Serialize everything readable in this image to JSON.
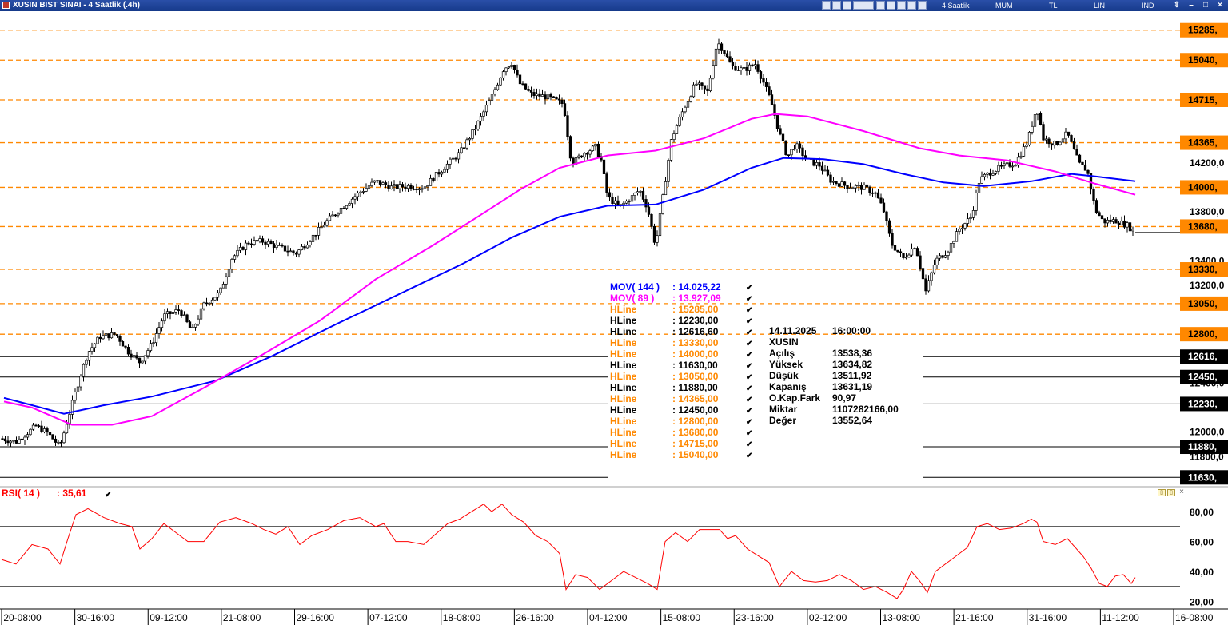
{
  "window": {
    "title": "XUSIN BIST SINAI - 4 Saatlik (.4h)",
    "menu": [
      "4 Saatlik",
      "MUM",
      "TL",
      "LIN",
      "IND"
    ]
  },
  "legend": {
    "mov144": {
      "label": "MOV( 144 )",
      "value": ": 14.025,22",
      "color": "#0000ff"
    },
    "mov89": {
      "label": "MOV( 89 )",
      "value": ": 13.927,09",
      "color": "#ff00ff"
    },
    "hlines": [
      {
        "label": "HLine",
        "value": ": 15285,00",
        "color": "#ff8800"
      },
      {
        "label": "HLine",
        "value": ": 12230,00",
        "color": "#000000"
      },
      {
        "label": "HLine",
        "value": ": 12616,60",
        "color": "#000000"
      },
      {
        "label": "HLine",
        "value": ": 13330,00",
        "color": "#ff8800"
      },
      {
        "label": "HLine",
        "value": ": 14000,00",
        "color": "#ff8800"
      },
      {
        "label": "HLine",
        "value": ": 11630,00",
        "color": "#000000"
      },
      {
        "label": "HLine",
        "value": ": 13050,00",
        "color": "#ff8800"
      },
      {
        "label": "HLine",
        "value": ": 11880,00",
        "color": "#000000"
      },
      {
        "label": "HLine",
        "value": ": 14365,00",
        "color": "#ff8800"
      },
      {
        "label": "HLine",
        "value": ": 12450,00",
        "color": "#000000"
      },
      {
        "label": "HLine",
        "value": ": 12800,00",
        "color": "#ff8800"
      },
      {
        "label": "HLine",
        "value": ": 13680,00",
        "color": "#ff8800"
      },
      {
        "label": "HLine",
        "value": ": 14715,00",
        "color": "#ff8800"
      },
      {
        "label": "HLine",
        "value": ": 15040,00",
        "color": "#ff8800"
      }
    ]
  },
  "info_box": {
    "date": "14.11.2025",
    "time": "16:00:00",
    "symbol": "XUSIN",
    "rows": [
      {
        "label": "Açılış",
        "value": "13538,36"
      },
      {
        "label": "Yüksek",
        "value": "13634,82"
      },
      {
        "label": "Düşük",
        "value": "13511,92"
      },
      {
        "label": "Kapanış",
        "value": "13631,19"
      },
      {
        "label": "O.Kap.Fark",
        "value": "90,97"
      },
      {
        "label": "Miktar",
        "value": "1107282166,00"
      },
      {
        "label": "Değer",
        "value": "13552,64"
      }
    ]
  },
  "rsi": {
    "label": "RSI( 14 )",
    "value": ": 35,61",
    "color": "#ff0000"
  },
  "chart_data": [
    {
      "type": "candlestick",
      "y_range": [
        11560,
        15440
      ],
      "y_ticks": [
        "14200,0",
        "13800,0",
        "13400,0",
        "13200,0",
        "12400,0",
        "12000,0",
        "11800,0"
      ],
      "y_tick_values": [
        14200,
        13800,
        13400,
        13200,
        12400,
        12000,
        11800
      ],
      "x_ticks": [
        "20-08:00",
        "30-16:00",
        "09-12:00",
        "21-08:00",
        "29-16:00",
        "07-12:00",
        "18-08:00",
        "26-16:00",
        "04-12:00",
        "15-08:00",
        "23-16:00",
        "02-12:00",
        "13-08:00",
        "21-16:00",
        "31-16:00",
        "11-12:00",
        "16-08:00"
      ],
      "hlines": [
        {
          "value": 15285,
          "label": "15285,",
          "style": "dashed",
          "color": "#ff8800"
        },
        {
          "value": 15040,
          "label": "15040,",
          "style": "dashed",
          "color": "#ff8800"
        },
        {
          "value": 14715,
          "label": "14715,",
          "style": "dashed",
          "color": "#ff8800"
        },
        {
          "value": 14365,
          "label": "14365,",
          "style": "dashed",
          "color": "#ff8800"
        },
        {
          "value": 14000,
          "label": "14000,",
          "style": "dashed",
          "color": "#ff8800"
        },
        {
          "value": 13680,
          "label": "13680,",
          "style": "dashed",
          "color": "#ff8800"
        },
        {
          "value": 13330,
          "label": "13330,",
          "style": "dashed",
          "color": "#ff8800"
        },
        {
          "value": 13050,
          "label": "13050,",
          "style": "dashed",
          "color": "#ff8800"
        },
        {
          "value": 12800,
          "label": "12800,",
          "style": "dashed",
          "color": "#ff8800"
        },
        {
          "value": 12616.6,
          "label": "12616,",
          "style": "solid",
          "color": "#000000"
        },
        {
          "value": 12450,
          "label": "12450,",
          "style": "solid",
          "color": "#000000"
        },
        {
          "value": 12230,
          "label": "12230,",
          "style": "solid",
          "color": "#000000"
        },
        {
          "value": 11880,
          "label": "11880,",
          "style": "solid",
          "color": "#000000"
        },
        {
          "value": 11630,
          "label": "11630,",
          "style": "solid",
          "color": "#000000"
        }
      ],
      "last_price": 13631.19,
      "close_path": [
        [
          0,
          11950
        ],
        [
          20,
          11920
        ],
        [
          45,
          12050
        ],
        [
          60,
          11990
        ],
        [
          75,
          11880
        ],
        [
          88,
          12180
        ],
        [
          100,
          12450
        ],
        [
          110,
          12650
        ],
        [
          125,
          12780
        ],
        [
          145,
          12800
        ],
        [
          160,
          12660
        ],
        [
          175,
          12570
        ],
        [
          190,
          12720
        ],
        [
          205,
          12950
        ],
        [
          225,
          13000
        ],
        [
          240,
          12820
        ],
        [
          255,
          13040
        ],
        [
          275,
          13140
        ],
        [
          290,
          13420
        ],
        [
          310,
          13550
        ],
        [
          330,
          13560
        ],
        [
          345,
          13520
        ],
        [
          370,
          13460
        ],
        [
          390,
          13590
        ],
        [
          410,
          13730
        ],
        [
          430,
          13850
        ],
        [
          450,
          13960
        ],
        [
          470,
          14050
        ],
        [
          490,
          14000
        ],
        [
          510,
          14010
        ],
        [
          530,
          14000
        ],
        [
          555,
          14160
        ],
        [
          575,
          14280
        ],
        [
          595,
          14490
        ],
        [
          615,
          14740
        ],
        [
          630,
          14970
        ],
        [
          640,
          15020
        ],
        [
          650,
          14850
        ],
        [
          665,
          14760
        ],
        [
          685,
          14740
        ],
        [
          705,
          14680
        ],
        [
          715,
          14190
        ],
        [
          730,
          14280
        ],
        [
          745,
          14330
        ],
        [
          752,
          14220
        ],
        [
          760,
          13920
        ],
        [
          775,
          13840
        ],
        [
          790,
          13920
        ],
        [
          800,
          13980
        ],
        [
          810,
          13830
        ],
        [
          820,
          13520
        ],
        [
          830,
          13960
        ],
        [
          840,
          14400
        ],
        [
          855,
          14640
        ],
        [
          870,
          14850
        ],
        [
          885,
          14780
        ],
        [
          897,
          15190
        ],
        [
          905,
          15120
        ],
        [
          915,
          14990
        ],
        [
          930,
          14960
        ],
        [
          945,
          15010
        ],
        [
          955,
          14860
        ],
        [
          965,
          14690
        ],
        [
          975,
          14440
        ],
        [
          985,
          14250
        ],
        [
          995,
          14350
        ],
        [
          1010,
          14220
        ],
        [
          1025,
          14180
        ],
        [
          1040,
          14050
        ],
        [
          1060,
          14010
        ],
        [
          1080,
          14000
        ],
        [
          1095,
          13950
        ],
        [
          1105,
          13820
        ],
        [
          1115,
          13540
        ],
        [
          1130,
          13420
        ],
        [
          1145,
          13530
        ],
        [
          1158,
          13150
        ],
        [
          1170,
          13400
        ],
        [
          1185,
          13480
        ],
        [
          1200,
          13660
        ],
        [
          1215,
          13760
        ],
        [
          1225,
          14060
        ],
        [
          1240,
          14130
        ],
        [
          1255,
          14170
        ],
        [
          1270,
          14200
        ],
        [
          1285,
          14370
        ],
        [
          1297,
          14660
        ],
        [
          1305,
          14400
        ],
        [
          1320,
          14350
        ],
        [
          1335,
          14440
        ],
        [
          1350,
          14190
        ],
        [
          1360,
          14140
        ],
        [
          1370,
          13820
        ],
        [
          1380,
          13720
        ],
        [
          1395,
          13730
        ],
        [
          1410,
          13690
        ],
        [
          1420,
          13631
        ]
      ],
      "series": [
        {
          "name": "MOV( 144 )",
          "color": "#0000ff",
          "points": [
            [
              5,
              12280
            ],
            [
              40,
              12220
            ],
            [
              80,
              12150
            ],
            [
              130,
              12220
            ],
            [
              190,
              12290
            ],
            [
              270,
              12420
            ],
            [
              340,
              12620
            ],
            [
              420,
              12880
            ],
            [
              500,
              13130
            ],
            [
              580,
              13380
            ],
            [
              640,
              13590
            ],
            [
              700,
              13760
            ],
            [
              760,
              13850
            ],
            [
              820,
              13860
            ],
            [
              880,
              13980
            ],
            [
              940,
              14160
            ],
            [
              980,
              14240
            ],
            [
              1030,
              14230
            ],
            [
              1080,
              14190
            ],
            [
              1130,
              14110
            ],
            [
              1180,
              14040
            ],
            [
              1230,
              14010
            ],
            [
              1290,
              14050
            ],
            [
              1340,
              14110
            ],
            [
              1370,
              14090
            ],
            [
              1420,
              14050
            ]
          ]
        },
        {
          "name": "MOV( 89 )",
          "color": "#ff00ff",
          "points": [
            [
              5,
              12250
            ],
            [
              40,
              12200
            ],
            [
              90,
              12060
            ],
            [
              140,
              12060
            ],
            [
              190,
              12130
            ],
            [
              260,
              12380
            ],
            [
              330,
              12640
            ],
            [
              400,
              12910
            ],
            [
              470,
              13250
            ],
            [
              540,
              13520
            ],
            [
              600,
              13770
            ],
            [
              650,
              13980
            ],
            [
              700,
              14160
            ],
            [
              760,
              14260
            ],
            [
              820,
              14300
            ],
            [
              880,
              14400
            ],
            [
              940,
              14560
            ],
            [
              970,
              14600
            ],
            [
              1010,
              14580
            ],
            [
              1080,
              14460
            ],
            [
              1150,
              14320
            ],
            [
              1200,
              14260
            ],
            [
              1260,
              14220
            ],
            [
              1320,
              14130
            ],
            [
              1370,
              14030
            ],
            [
              1420,
              13940
            ]
          ]
        }
      ]
    },
    {
      "type": "line",
      "name": "RSI( 14 )",
      "y_range": [
        15,
        95
      ],
      "y_ticks": [
        "80,00",
        "60,00",
        "40,00",
        "20,00"
      ],
      "y_tick_values": [
        80,
        60,
        40,
        20
      ],
      "reference_levels": [
        70,
        30
      ],
      "points": [
        [
          2,
          48
        ],
        [
          20,
          45
        ],
        [
          40,
          58
        ],
        [
          60,
          55
        ],
        [
          75,
          45
        ],
        [
          85,
          62
        ],
        [
          95,
          78
        ],
        [
          110,
          82
        ],
        [
          130,
          76
        ],
        [
          150,
          72
        ],
        [
          165,
          70
        ],
        [
          175,
          55
        ],
        [
          190,
          62
        ],
        [
          205,
          72
        ],
        [
          220,
          66
        ],
        [
          235,
          60
        ],
        [
          255,
          60
        ],
        [
          275,
          73
        ],
        [
          295,
          76
        ],
        [
          315,
          72
        ],
        [
          330,
          68
        ],
        [
          345,
          65
        ],
        [
          360,
          70
        ],
        [
          375,
          58
        ],
        [
          390,
          64
        ],
        [
          410,
          68
        ],
        [
          430,
          74
        ],
        [
          450,
          76
        ],
        [
          470,
          70
        ],
        [
          480,
          72
        ],
        [
          495,
          60
        ],
        [
          510,
          60
        ],
        [
          530,
          58
        ],
        [
          545,
          65
        ],
        [
          560,
          72
        ],
        [
          575,
          75
        ],
        [
          590,
          80
        ],
        [
          605,
          85
        ],
        [
          615,
          80
        ],
        [
          628,
          85
        ],
        [
          640,
          78
        ],
        [
          655,
          73
        ],
        [
          670,
          64
        ],
        [
          685,
          60
        ],
        [
          700,
          52
        ],
        [
          708,
          28
        ],
        [
          720,
          38
        ],
        [
          735,
          36
        ],
        [
          750,
          28
        ],
        [
          765,
          34
        ],
        [
          780,
          40
        ],
        [
          795,
          36
        ],
        [
          810,
          32
        ],
        [
          822,
          28
        ],
        [
          832,
          60
        ],
        [
          845,
          66
        ],
        [
          860,
          60
        ],
        [
          875,
          68
        ],
        [
          890,
          68
        ],
        [
          900,
          68
        ],
        [
          910,
          62
        ],
        [
          920,
          64
        ],
        [
          935,
          55
        ],
        [
          950,
          50
        ],
        [
          962,
          46
        ],
        [
          975,
          30
        ],
        [
          990,
          40
        ],
        [
          1005,
          34
        ],
        [
          1020,
          33
        ],
        [
          1035,
          34
        ],
        [
          1050,
          38
        ],
        [
          1065,
          34
        ],
        [
          1080,
          28
        ],
        [
          1095,
          30
        ],
        [
          1110,
          26
        ],
        [
          1122,
          22
        ],
        [
          1130,
          28
        ],
        [
          1140,
          40
        ],
        [
          1150,
          34
        ],
        [
          1160,
          26
        ],
        [
          1170,
          40
        ],
        [
          1185,
          46
        ],
        [
          1195,
          50
        ],
        [
          1210,
          56
        ],
        [
          1222,
          70
        ],
        [
          1235,
          72
        ],
        [
          1250,
          68
        ],
        [
          1265,
          69
        ],
        [
          1280,
          72
        ],
        [
          1290,
          75
        ],
        [
          1297,
          73
        ],
        [
          1305,
          60
        ],
        [
          1320,
          58
        ],
        [
          1335,
          62
        ],
        [
          1345,
          56
        ],
        [
          1355,
          50
        ],
        [
          1365,
          42
        ],
        [
          1375,
          32
        ],
        [
          1385,
          30
        ],
        [
          1395,
          37
        ],
        [
          1405,
          38
        ],
        [
          1415,
          32
        ],
        [
          1420,
          36
        ]
      ]
    }
  ]
}
